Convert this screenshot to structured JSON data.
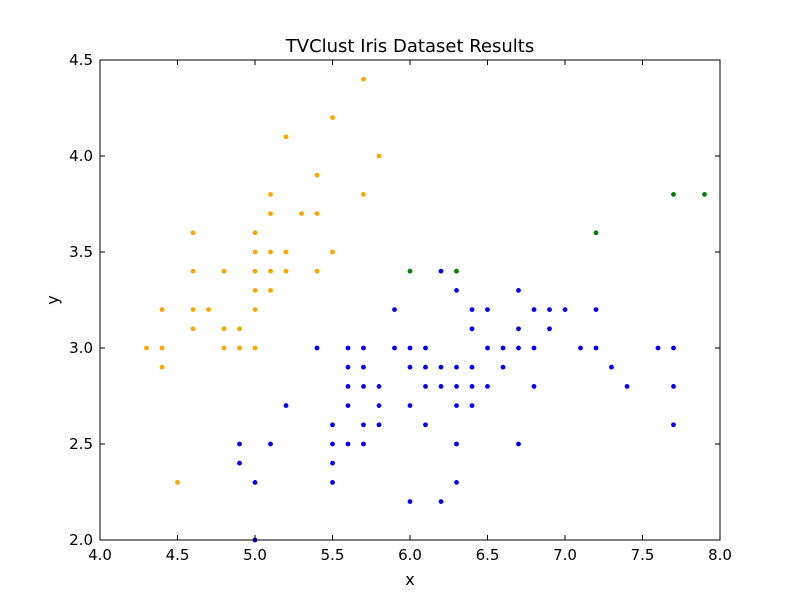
{
  "chart_data": {
    "type": "scatter",
    "title": "TVClust Iris Dataset Results",
    "xlabel": "x",
    "ylabel": "y",
    "xlim": [
      4.0,
      8.0
    ],
    "ylim": [
      2.0,
      4.5
    ],
    "grid": false,
    "x_ticks": [
      "4.0",
      "4.5",
      "5.0",
      "5.5",
      "6.0",
      "6.5",
      "7.0",
      "7.5",
      "8.0"
    ],
    "y_ticks": [
      "2.0",
      "2.5",
      "3.0",
      "3.5",
      "4.0",
      "4.5"
    ],
    "series": [
      {
        "color": "#ffa500",
        "points": [
          [
            4.3,
            3.0
          ],
          [
            4.4,
            2.9
          ],
          [
            4.4,
            3.0
          ],
          [
            4.4,
            3.2
          ],
          [
            4.5,
            2.3
          ],
          [
            4.6,
            3.1
          ],
          [
            4.6,
            3.2
          ],
          [
            4.6,
            3.4
          ],
          [
            4.6,
            3.6
          ],
          [
            4.7,
            3.2
          ],
          [
            4.8,
            3.0
          ],
          [
            4.8,
            3.1
          ],
          [
            4.8,
            3.4
          ],
          [
            4.9,
            3.0
          ],
          [
            4.9,
            3.1
          ],
          [
            5.0,
            3.0
          ],
          [
            5.0,
            3.2
          ],
          [
            5.0,
            3.3
          ],
          [
            5.0,
            3.4
          ],
          [
            5.0,
            3.5
          ],
          [
            5.0,
            3.6
          ],
          [
            5.1,
            3.3
          ],
          [
            5.1,
            3.4
          ],
          [
            5.1,
            3.5
          ],
          [
            5.1,
            3.7
          ],
          [
            5.1,
            3.8
          ],
          [
            5.2,
            3.4
          ],
          [
            5.2,
            3.5
          ],
          [
            5.2,
            4.1
          ],
          [
            5.3,
            3.7
          ],
          [
            5.4,
            3.4
          ],
          [
            5.4,
            3.7
          ],
          [
            5.4,
            3.9
          ],
          [
            5.5,
            3.5
          ],
          [
            5.5,
            4.2
          ],
          [
            5.7,
            3.8
          ],
          [
            5.7,
            4.4
          ],
          [
            5.8,
            4.0
          ]
        ]
      },
      {
        "color": "#0000ff",
        "points": [
          [
            4.9,
            2.4
          ],
          [
            4.9,
            2.5
          ],
          [
            5.0,
            2.0
          ],
          [
            5.0,
            2.3
          ],
          [
            5.1,
            2.5
          ],
          [
            5.2,
            2.7
          ],
          [
            5.4,
            3.0
          ],
          [
            5.5,
            2.3
          ],
          [
            5.5,
            2.4
          ],
          [
            5.5,
            2.5
          ],
          [
            5.5,
            2.6
          ],
          [
            5.6,
            2.5
          ],
          [
            5.6,
            2.7
          ],
          [
            5.6,
            2.8
          ],
          [
            5.6,
            2.9
          ],
          [
            5.6,
            3.0
          ],
          [
            5.7,
            2.5
          ],
          [
            5.7,
            2.6
          ],
          [
            5.7,
            2.8
          ],
          [
            5.7,
            2.9
          ],
          [
            5.7,
            3.0
          ],
          [
            5.8,
            2.6
          ],
          [
            5.8,
            2.7
          ],
          [
            5.8,
            2.8
          ],
          [
            5.9,
            3.0
          ],
          [
            5.9,
            3.2
          ],
          [
            6.0,
            2.2
          ],
          [
            6.0,
            2.7
          ],
          [
            6.0,
            2.9
          ],
          [
            6.0,
            3.0
          ],
          [
            6.1,
            2.6
          ],
          [
            6.1,
            2.8
          ],
          [
            6.1,
            2.9
          ],
          [
            6.1,
            3.0
          ],
          [
            6.2,
            2.2
          ],
          [
            6.2,
            2.8
          ],
          [
            6.2,
            2.9
          ],
          [
            6.2,
            3.4
          ],
          [
            6.3,
            2.3
          ],
          [
            6.3,
            2.5
          ],
          [
            6.3,
            2.7
          ],
          [
            6.3,
            2.8
          ],
          [
            6.3,
            2.9
          ],
          [
            6.3,
            3.3
          ],
          [
            6.4,
            2.7
          ],
          [
            6.4,
            2.8
          ],
          [
            6.4,
            2.9
          ],
          [
            6.4,
            3.1
          ],
          [
            6.4,
            3.2
          ],
          [
            6.5,
            2.8
          ],
          [
            6.5,
            3.0
          ],
          [
            6.5,
            3.2
          ],
          [
            6.6,
            2.9
          ],
          [
            6.6,
            3.0
          ],
          [
            6.7,
            2.5
          ],
          [
            6.7,
            3.0
          ],
          [
            6.7,
            3.1
          ],
          [
            6.7,
            3.3
          ],
          [
            6.8,
            2.8
          ],
          [
            6.8,
            3.0
          ],
          [
            6.8,
            3.2
          ],
          [
            6.9,
            3.1
          ],
          [
            6.9,
            3.2
          ],
          [
            7.0,
            3.2
          ],
          [
            7.1,
            3.0
          ],
          [
            7.2,
            3.0
          ],
          [
            7.2,
            3.2
          ],
          [
            7.3,
            2.9
          ],
          [
            7.4,
            2.8
          ],
          [
            7.6,
            3.0
          ],
          [
            7.7,
            2.6
          ],
          [
            7.7,
            2.8
          ],
          [
            7.7,
            3.0
          ]
        ]
      },
      {
        "color": "#008000",
        "points": [
          [
            6.0,
            3.4
          ],
          [
            6.3,
            3.4
          ],
          [
            7.2,
            3.6
          ],
          [
            7.7,
            3.8
          ],
          [
            7.9,
            3.8
          ]
        ]
      }
    ]
  }
}
